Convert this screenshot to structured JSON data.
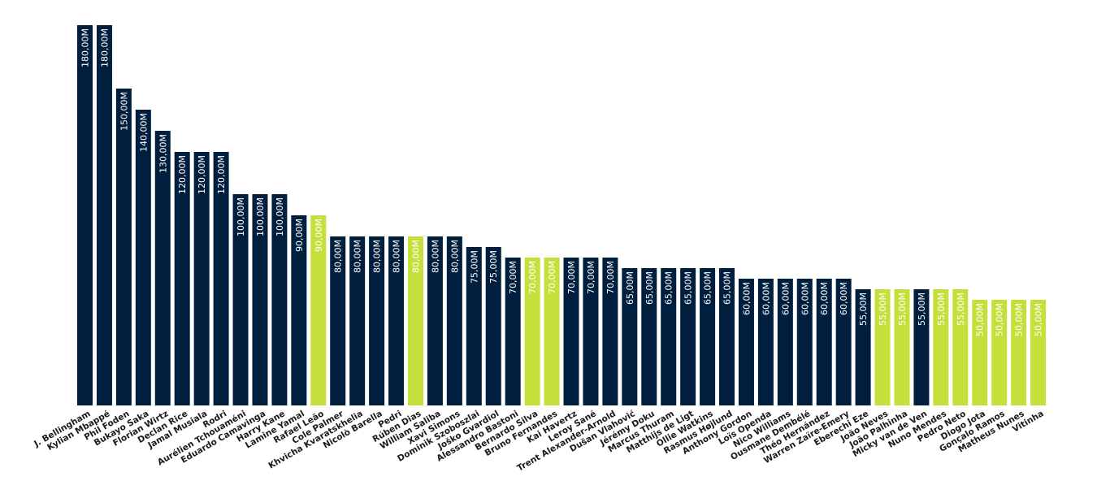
{
  "colors": {
    "default_bar": "#001f3f",
    "highlight_bar": "#c5e03a",
    "label_on_default": "#ffffff",
    "label_on_highlight": "#ffffff",
    "category_text": "#1a1a1a",
    "background": "#ffffff"
  },
  "chart_data": {
    "type": "bar",
    "title": "",
    "xlabel": "",
    "ylabel": "",
    "unit_suffix": "M",
    "decimal_separator": ",",
    "ylim": [
      0,
      180
    ],
    "grid": false,
    "legend": "none",
    "categories": [
      "J. Bellingham",
      "Kylian Mbappé",
      "Phil Foden",
      "Bukayo Saka",
      "Florian Wirtz",
      "Declan Rice",
      "Jamal Musiala",
      "Rodri",
      "Aurélien Tchouaméni",
      "Eduardo Camavinga",
      "Harry Kane",
      "Lamine Yamal",
      "Rafael Leão",
      "Cole Palmer",
      "Khvicha Kvaratskhelia",
      "Nicolò Barella",
      "Pedri",
      "Rúben Dias",
      "William Saliba",
      "Xavi Simons",
      "Dominik Szoboszlai",
      "Joško Gvardiol",
      "Alessandro Bastoni",
      "Bernardo Silva",
      "Bruno Fernandes",
      "Kai Havertz",
      "Leroy Sané",
      "Trent Alexander-Arnold",
      "Dušan Vlahović",
      "Jérémy Doku",
      "Marcus Thuram",
      "Matthijs de Ligt",
      "Ollie Watkins",
      "Rasmus Højlund",
      "Anthony Gordon",
      "Loïs Openda",
      "Nico Williams",
      "Ousmane Dembélé",
      "Théo Hernández",
      "Warren Zaïre-Emery",
      "Eberechi Eze",
      "João Neves",
      "João Palhinha",
      "Micky van de Ven",
      "Nuno Mendes",
      "Pedro Neto",
      "Diogo Jota",
      "Gonçalo Ramos",
      "Matheus Nunes",
      "Vitinha"
    ],
    "values": [
      180,
      180,
      150,
      140,
      130,
      120,
      120,
      120,
      100,
      100,
      100,
      90,
      90,
      80,
      80,
      80,
      80,
      80,
      80,
      80,
      75,
      75,
      70,
      70,
      70,
      70,
      70,
      70,
      65,
      65,
      65,
      65,
      65,
      65,
      60,
      60,
      60,
      60,
      60,
      60,
      55,
      55,
      55,
      55,
      55,
      55,
      50,
      50,
      50,
      50
    ],
    "value_labels": [
      "180,00M",
      "180,00M",
      "150,00M",
      "140,00M",
      "130,00M",
      "120,00M",
      "120,00M",
      "120,00M",
      "100,00M",
      "100,00M",
      "100,00M",
      "90,00M",
      "90,00M",
      "80,00M",
      "80,00M",
      "80,00M",
      "80,00M",
      "80,00M",
      "80,00M",
      "80,00M",
      "75,00M",
      "75,00M",
      "70,00M",
      "70,00M",
      "70,00M",
      "70,00M",
      "70,00M",
      "70,00M",
      "65,00M",
      "65,00M",
      "65,00M",
      "65,00M",
      "65,00M",
      "65,00M",
      "60,00M",
      "60,00M",
      "60,00M",
      "60,00M",
      "60,00M",
      "60,00M",
      "55,00M",
      "55,00M",
      "55,00M",
      "55,00M",
      "55,00M",
      "55,00M",
      "50,00M",
      "50,00M",
      "50,00M",
      "50,00M"
    ],
    "highlighted": [
      false,
      false,
      false,
      false,
      false,
      false,
      false,
      false,
      false,
      false,
      false,
      false,
      true,
      false,
      false,
      false,
      false,
      true,
      false,
      false,
      false,
      false,
      false,
      true,
      true,
      false,
      false,
      false,
      false,
      false,
      false,
      false,
      false,
      false,
      false,
      false,
      false,
      false,
      false,
      false,
      false,
      true,
      true,
      false,
      true,
      true,
      true,
      true,
      true,
      true
    ]
  }
}
